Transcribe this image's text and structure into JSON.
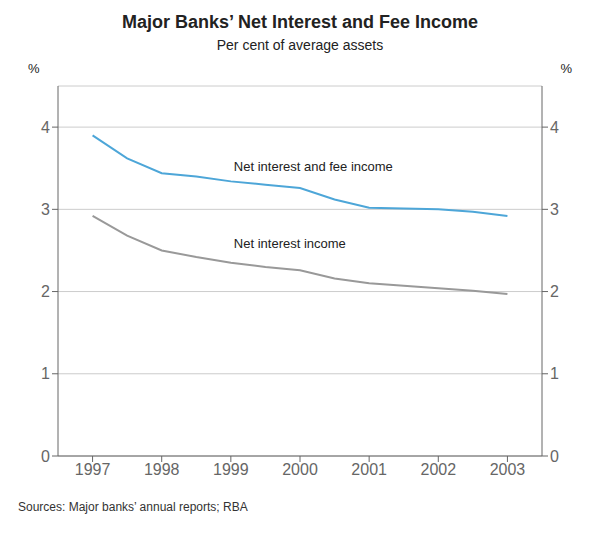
{
  "chart_data": {
    "type": "line",
    "title": "Major Banks’ Net Interest and Fee Income",
    "subtitle": "Per cent of average assets",
    "x": [
      1997,
      1997.5,
      1998,
      1998.5,
      1999,
      1999.5,
      2000,
      2000.5,
      2001,
      2001.5,
      2002,
      2002.5,
      2003
    ],
    "series": [
      {
        "color": "#4da6d8",
        "values": [
          3.9,
          3.62,
          3.44,
          3.4,
          3.34,
          3.3,
          3.26,
          3.12,
          3.02,
          3.01,
          3.0,
          2.97,
          2.92
        ]
      },
      {
        "color": "#999999",
        "values": [
          2.92,
          2.68,
          2.5,
          2.42,
          2.35,
          2.3,
          2.26,
          2.16,
          2.1,
          2.07,
          2.04,
          2.01,
          1.97
        ]
      }
    ],
    "xlim": [
      1996.5,
      2003.5
    ],
    "xticks": [
      1997,
      1998,
      1999,
      2000,
      2001,
      2002,
      2003
    ],
    "ylim": [
      0,
      4.5
    ],
    "yticks": [
      0,
      1,
      2,
      3,
      4
    ],
    "y2lim": [
      0,
      4.5
    ],
    "y2ticks": [
      0,
      1,
      2,
      3,
      4
    ],
    "ylabel": "%",
    "y2label": "%",
    "grid": true,
    "annotations": [
      {
        "text": "Net interest and fee income",
        "x": 1999.0,
        "y": 3.52
      },
      {
        "text": "Net interest income",
        "x": 1999.0,
        "y": 2.58
      }
    ],
    "source": "Sources: Major banks’ annual reports; RBA"
  }
}
